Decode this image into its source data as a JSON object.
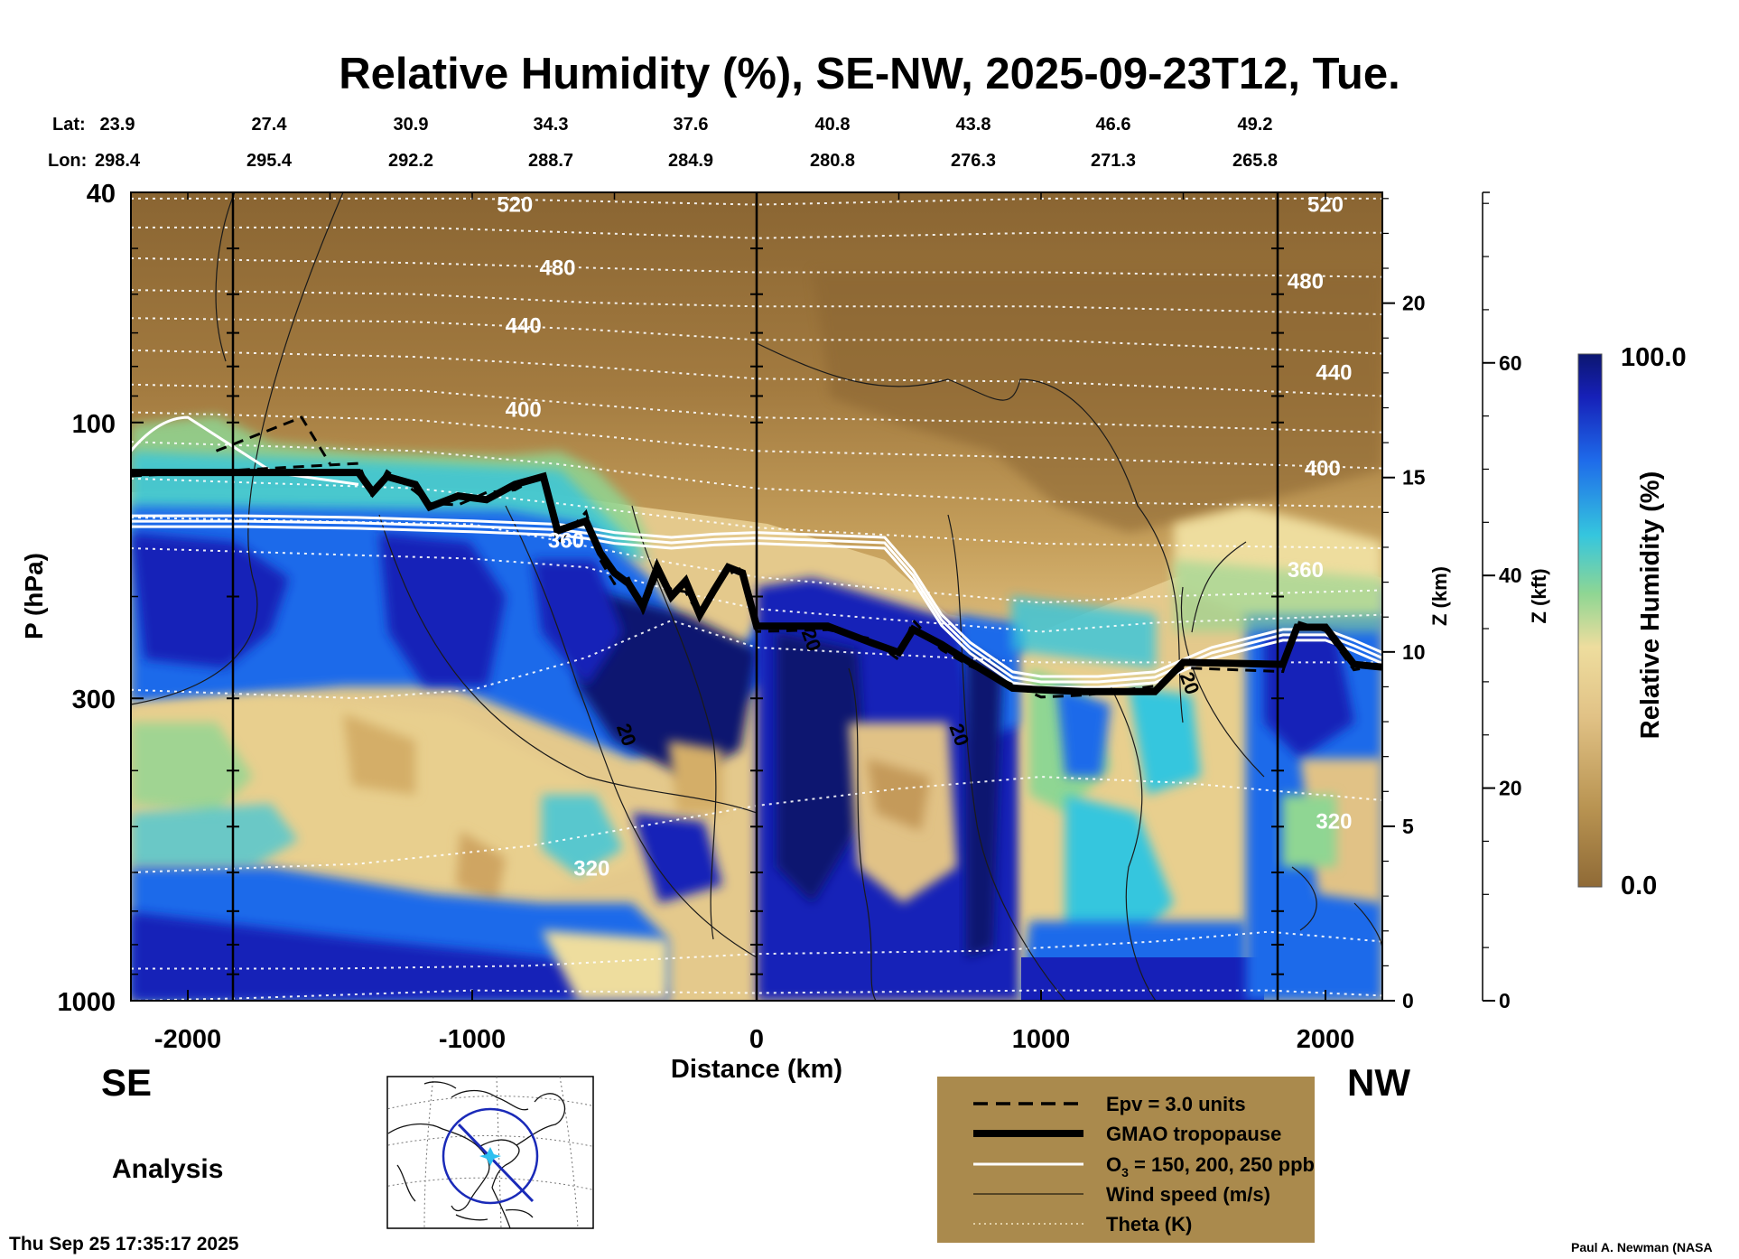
{
  "chart_data": {
    "type": "heatmap",
    "title": "Relative Humidity (%), SE-NW, 2025-09-23T12, Tue.",
    "xlabel": "Distance (km)",
    "ylabel": "P (hPa)",
    "z_km_label": "Z (km)",
    "z_kft_label": "Z (kft)",
    "xlim": [
      -2200,
      2200
    ],
    "ylim_hpa": [
      1000,
      40
    ],
    "x_ticks": [
      {
        "value": -2000,
        "label": "-2000"
      },
      {
        "value": -1000,
        "label": "-1000"
      },
      {
        "value": 0,
        "label": "0"
      },
      {
        "value": 1000,
        "label": "1000"
      },
      {
        "value": 2000,
        "label": "2000"
      }
    ],
    "p_ticks": [
      {
        "value": 40,
        "label": "40"
      },
      {
        "value": 100,
        "label": "100"
      },
      {
        "value": 300,
        "label": "300"
      },
      {
        "value": 1000,
        "label": "1000"
      }
    ],
    "z_km_ticks": [
      {
        "value": 0,
        "label": "0"
      },
      {
        "value": 5,
        "label": "5"
      },
      {
        "value": 10,
        "label": "10"
      },
      {
        "value": 15,
        "label": "15"
      },
      {
        "value": 20,
        "label": "20"
      }
    ],
    "z_kft_ticks": [
      {
        "value": 0,
        "label": "0"
      },
      {
        "value": 20,
        "label": "20"
      },
      {
        "value": 40,
        "label": "40"
      },
      {
        "value": 60,
        "label": "60"
      }
    ],
    "lat_label": "Lat:",
    "lon_label": "Lon:",
    "coords": [
      {
        "lat": "23.9",
        "lon": "298.4"
      },
      {
        "lat": "27.4",
        "lon": "295.4"
      },
      {
        "lat": "30.9",
        "lon": "292.2"
      },
      {
        "lat": "34.3",
        "lon": "288.7"
      },
      {
        "lat": "37.6",
        "lon": "284.9"
      },
      {
        "lat": "40.8",
        "lon": "280.8"
      },
      {
        "lat": "43.8",
        "lon": "276.3"
      },
      {
        "lat": "46.6",
        "lon": "271.3"
      },
      {
        "lat": "49.2",
        "lon": "265.8"
      }
    ],
    "theta_labels": [
      {
        "text": "520",
        "x": -850,
        "p": 42
      },
      {
        "text": "480",
        "x": -700,
        "p": 54
      },
      {
        "text": "440",
        "x": -820,
        "p": 68
      },
      {
        "text": "400",
        "x": -820,
        "p": 95
      },
      {
        "text": "360",
        "x": -670,
        "p": 160
      },
      {
        "text": "320",
        "x": -580,
        "p": 590
      },
      {
        "text": "520",
        "x": 2000,
        "p": 42
      },
      {
        "text": "480",
        "x": 1930,
        "p": 57
      },
      {
        "text": "440",
        "x": 2030,
        "p": 82
      },
      {
        "text": "400",
        "x": 1990,
        "p": 120
      },
      {
        "text": "360",
        "x": 1930,
        "p": 180
      },
      {
        "text": "320",
        "x": 2030,
        "p": 490
      }
    ],
    "wind_labels": [
      {
        "text": "20",
        "x": 170,
        "p": 240
      },
      {
        "text": "20",
        "x": -480,
        "p": 350
      },
      {
        "text": "20",
        "x": 690,
        "p": 350
      },
      {
        "text": "20",
        "x": 1500,
        "p": 285
      }
    ],
    "colorbar": {
      "label": "Relative Humidity (%)",
      "max_label": "100.0",
      "min_label": "0.0",
      "range": [
        0,
        100
      ]
    },
    "colors": {
      "dry": "#8f6a36",
      "dry_mid": "#b99452",
      "tan": "#e1c286",
      "pale": "#eedd9e",
      "green": "#8fd693",
      "cyan": "#35c6de",
      "blue": "#1e6bea",
      "deep_blue": "#1620b8",
      "navy": "#0c1670"
    },
    "tropopause_x": [
      -2200,
      -1400,
      -1350,
      -1300,
      -1200,
      -1150,
      -1050,
      -950,
      -850,
      -750,
      -700,
      -600,
      -550,
      -500,
      -450,
      -400,
      -350,
      -300,
      -250,
      -200,
      -150,
      -100,
      -50,
      0,
      250,
      400,
      500,
      550,
      650,
      750,
      900,
      1000,
      1150,
      1400,
      1500,
      1850,
      1900,
      2000,
      2100,
      2200
    ],
    "tropopause_p": [
      122,
      122,
      132,
      124,
      128,
      140,
      134,
      136,
      128,
      124,
      154,
      148,
      168,
      182,
      190,
      208,
      178,
      200,
      188,
      215,
      195,
      178,
      182,
      225,
      225,
      240,
      250,
      228,
      242,
      260,
      288,
      290,
      292,
      292,
      260,
      262,
      226,
      226,
      262,
      265
    ],
    "ozone_x": [
      -2200,
      -1800,
      -1400,
      -1000,
      -700,
      -600,
      -500,
      -300,
      -150,
      0,
      450,
      550,
      650,
      750,
      900,
      1000,
      1200,
      1400,
      1600,
      1850,
      2000,
      2100,
      2200
    ],
    "ozone_p": [
      145,
      145,
      146,
      148,
      150,
      152,
      155,
      158,
      156,
      155,
      158,
      180,
      215,
      240,
      270,
      275,
      275,
      270,
      245,
      228,
      228,
      238,
      250
    ],
    "legend": [
      {
        "style": "dashed",
        "label": "Epv = 3.0 units"
      },
      {
        "style": "thick",
        "label": "GMAO tropopause"
      },
      {
        "style": "white",
        "label": "O",
        "label_sub": "3",
        "label_rest": " = 150, 200, 250 ppb"
      },
      {
        "style": "thin",
        "label": "Wind speed (m/s)"
      },
      {
        "style": "dotted",
        "label": "Theta (K)"
      }
    ]
  },
  "left_direction": "SE",
  "right_direction": "NW",
  "analysis_label": "Analysis",
  "timestamp": "Thu Sep 25 17:35:17 2025",
  "credit": "Paul A. Newman (NASA"
}
